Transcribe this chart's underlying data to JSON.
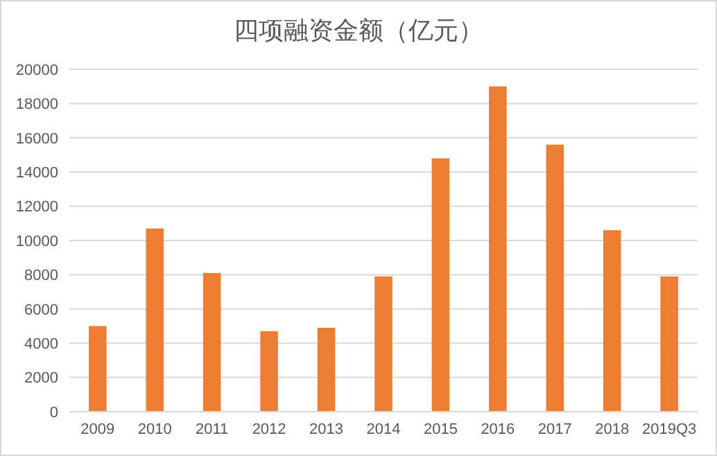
{
  "chart_data": {
    "type": "bar",
    "title": "四项融资金额（亿元）",
    "categories": [
      "2009",
      "2010",
      "2011",
      "2012",
      "2013",
      "2014",
      "2015",
      "2016",
      "2017",
      "2018",
      "2019Q3"
    ],
    "values": [
      5000,
      10700,
      8100,
      4700,
      4900,
      7900,
      14800,
      19000,
      15600,
      10600,
      7900
    ],
    "color": "#ed7d31",
    "ylim": [
      0,
      20000
    ],
    "yticks": [
      0,
      2000,
      4000,
      6000,
      8000,
      10000,
      12000,
      14000,
      16000,
      18000,
      20000
    ],
    "grid": "y"
  }
}
